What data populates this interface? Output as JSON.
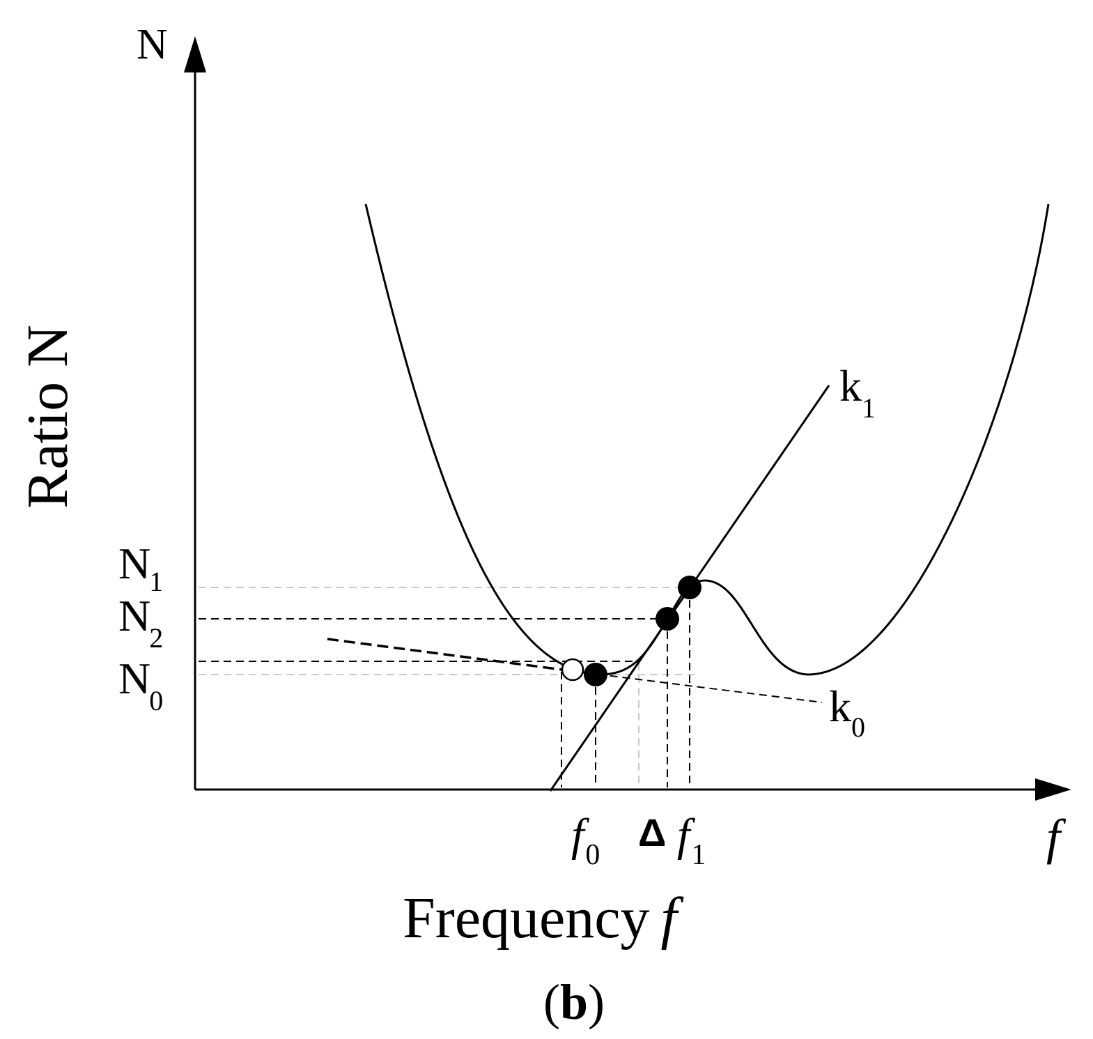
{
  "labels": {
    "y_axis_top": "N",
    "y_axis_title": "Ratio N",
    "x_axis_end": "f",
    "x_axis_title_word": "Frequency",
    "x_axis_title_symbol": "f",
    "panel_label": "(b)",
    "panel_letter": "b",
    "paren_open": "(",
    "paren_close": ")",
    "N1_main": "N",
    "N1_sub": "1",
    "N2_main": "N",
    "N2_sub": "2",
    "N0_main": "N",
    "N0_sub": "0",
    "f0_main": "f",
    "f0_sub": "0",
    "delta": "Δ",
    "f1_main": "f",
    "f1_sub": "1",
    "k1_main": "k",
    "k1_sub": "1",
    "k0_main": "k",
    "k0_sub": "0"
  },
  "colors": {
    "ink": "#000000",
    "light_dash": "#c8c8c8",
    "background": "#ffffff"
  }
}
